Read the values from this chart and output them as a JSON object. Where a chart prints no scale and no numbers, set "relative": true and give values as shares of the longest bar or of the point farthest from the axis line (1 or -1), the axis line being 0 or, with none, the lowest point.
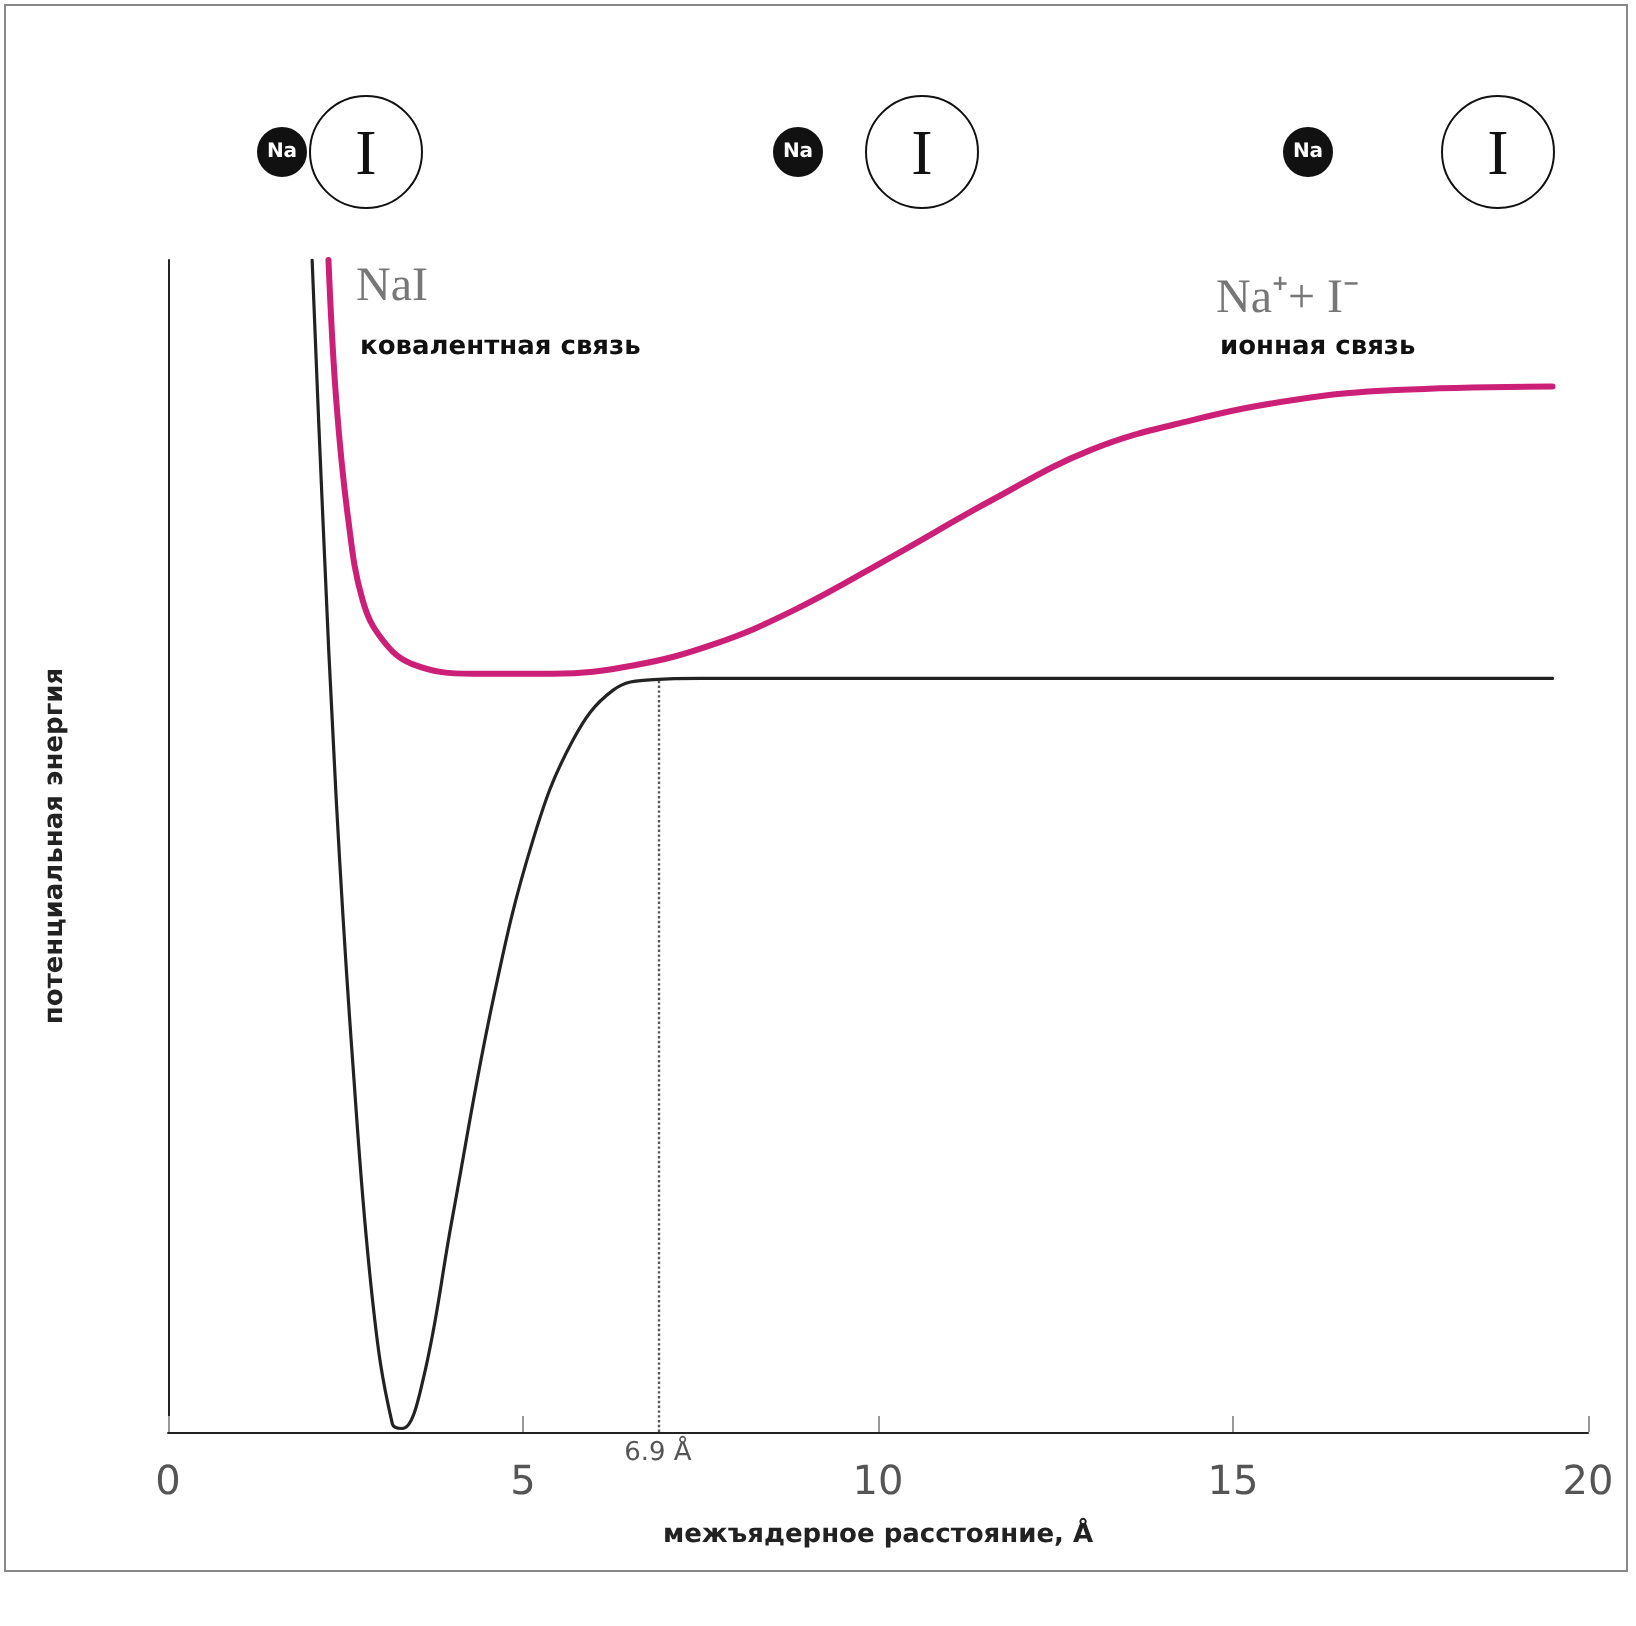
{
  "chart_data": {
    "type": "line",
    "relative": true,
    "xlabel": "межъядерное расстояние, Å",
    "ylabel": "потенциальная энергия",
    "xlim": [
      0,
      20
    ],
    "xticks": [
      0,
      5,
      10,
      15,
      20
    ],
    "grid": false,
    "marker": "none",
    "line_style": "solid",
    "series": [
      {
        "color": "#222222",
        "x": [
          2.03,
          2.17,
          2.37,
          2.6,
          2.88,
          3.16,
          3.3,
          3.59,
          4.0,
          4.58,
          5.14,
          5.7,
          6.27,
          6.84,
          7.5,
          10,
          15,
          19.5
        ],
        "values": [
          1.0,
          0.795,
          0.539,
          0.317,
          0.113,
          0.007,
          0.003,
          0.044,
          0.181,
          0.369,
          0.505,
          0.59,
          0.633,
          0.642,
          0.643,
          0.643,
          0.643,
          0.643
        ]
      },
      {
        "color": "#cc1f78",
        "x": [
          2.26,
          2.37,
          2.54,
          2.74,
          3.02,
          3.45,
          4.29,
          5.42,
          6.55,
          7.68,
          8.81,
          10.2,
          11.6,
          13.0,
          14.4,
          15.9,
          17.3,
          19.5
        ],
        "values": [
          1.0,
          0.88,
          0.778,
          0.71,
          0.676,
          0.655,
          0.647,
          0.647,
          0.654,
          0.672,
          0.701,
          0.747,
          0.795,
          0.838,
          0.863,
          0.881,
          0.889,
          0.892
        ]
      }
    ],
    "ref_lines": [
      {
        "axis": "x",
        "value": 6.9,
        "label": "6.9 Å",
        "color": "#555555",
        "line_style": "dotted"
      }
    ],
    "annotations": [
      "NaI",
      "ковалентная связь",
      "Na⁺+ I⁻",
      "ионная связь",
      "Na",
      "I",
      "Na",
      "I",
      "Na",
      "I"
    ]
  }
}
